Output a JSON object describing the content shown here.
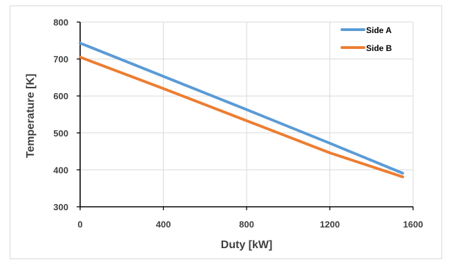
{
  "chart_data": {
    "type": "line",
    "title": "",
    "xlabel": "Duty [kW]",
    "ylabel": "Temperature [K]",
    "xlim": [
      0,
      1600
    ],
    "ylim": [
      300,
      800
    ],
    "xticks": [
      0,
      400,
      800,
      1200,
      1600
    ],
    "yticks": [
      300,
      400,
      500,
      600,
      700,
      800
    ],
    "x_tick_labels": [
      "0",
      "400",
      "800",
      "1200",
      "1600"
    ],
    "y_tick_labels": [
      "300",
      "400",
      "500",
      "600",
      "700",
      "800"
    ],
    "grid": true,
    "legend_position": "top-right",
    "series": [
      {
        "name": "Side A",
        "color": "#5b9bd5",
        "x": [
          0,
          400,
          800,
          1200,
          1550
        ],
        "y": [
          743,
          653,
          563,
          472,
          391
        ]
      },
      {
        "name": "Side B",
        "color": "#ed7d31",
        "x": [
          0,
          400,
          800,
          1200,
          1550
        ],
        "y": [
          705,
          620,
          533,
          446,
          381
        ]
      }
    ]
  }
}
